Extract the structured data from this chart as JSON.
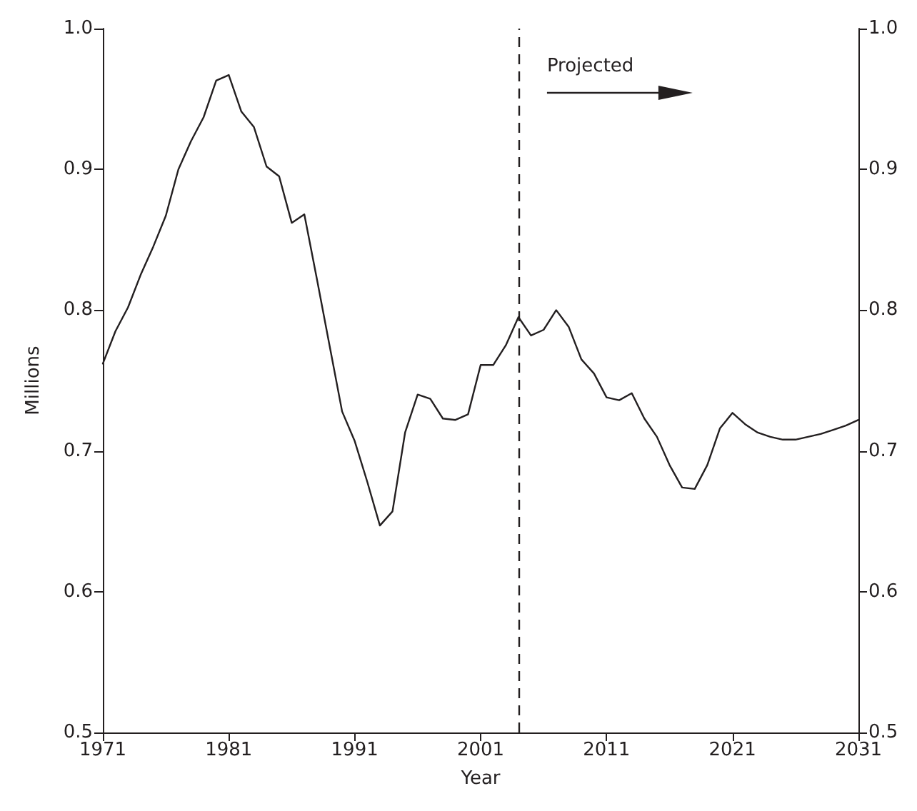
{
  "chart_data": {
    "type": "line",
    "xlabel": "Year",
    "ylabel": "Millions",
    "x": [
      1971,
      1972,
      1973,
      1974,
      1975,
      1976,
      1977,
      1978,
      1979,
      1980,
      1981,
      1982,
      1983,
      1984,
      1985,
      1986,
      1987,
      1988,
      1989,
      1990,
      1991,
      1992,
      1993,
      1994,
      1995,
      1996,
      1997,
      1998,
      1999,
      2000,
      2001,
      2002,
      2003,
      2004,
      2005,
      2006,
      2007,
      2008,
      2009,
      2010,
      2011,
      2012,
      2013,
      2014,
      2015,
      2016,
      2017,
      2018,
      2019,
      2020,
      2021,
      2022,
      2023,
      2024,
      2025,
      2026,
      2027,
      2028,
      2029,
      2030,
      2031
    ],
    "series": [
      {
        "color": "#231f20",
        "values": [
          0.762,
          0.785,
          0.802,
          0.825,
          0.845,
          0.867,
          0.9,
          0.92,
          0.937,
          0.963,
          0.967,
          0.941,
          0.93,
          0.902,
          0.895,
          0.862,
          0.868,
          0.822,
          0.775,
          0.728,
          0.707,
          0.678,
          0.647,
          0.657,
          0.713,
          0.74,
          0.737,
          0.723,
          0.722,
          0.726,
          0.761,
          0.761,
          0.775,
          0.795,
          0.782,
          0.786,
          0.8,
          0.788,
          0.765,
          0.755,
          0.738,
          0.736,
          0.741,
          0.723,
          0.71,
          0.69,
          0.674,
          0.673,
          0.69,
          0.716,
          0.727,
          0.719,
          0.713,
          0.71,
          0.708,
          0.708,
          0.71,
          0.712,
          0.715,
          0.718,
          0.722
        ]
      }
    ],
    "xlim": [
      1971,
      2031
    ],
    "xticks": [
      1971,
      1981,
      1991,
      2001,
      2011,
      2021,
      2031
    ],
    "ylim": [
      0.5,
      1
    ],
    "yticks": [
      0.5,
      0.6,
      0.7,
      0.8,
      0.9,
      {
        "value": 1,
        "label": "1.0"
      }
    ],
    "y2lim": [
      0.5,
      1
    ],
    "y2ticks": [
      0.5,
      0.6,
      0.7,
      0.8,
      0.9,
      {
        "value": 1,
        "label": "1.0"
      }
    ],
    "ref_lines": [
      {
        "axis": "x",
        "value": 2004,
        "color": "#231f20",
        "line_style": "dashed"
      }
    ],
    "annotations": [
      "Projected"
    ],
    "grid": false,
    "marker": "none",
    "line_style": "solid"
  }
}
